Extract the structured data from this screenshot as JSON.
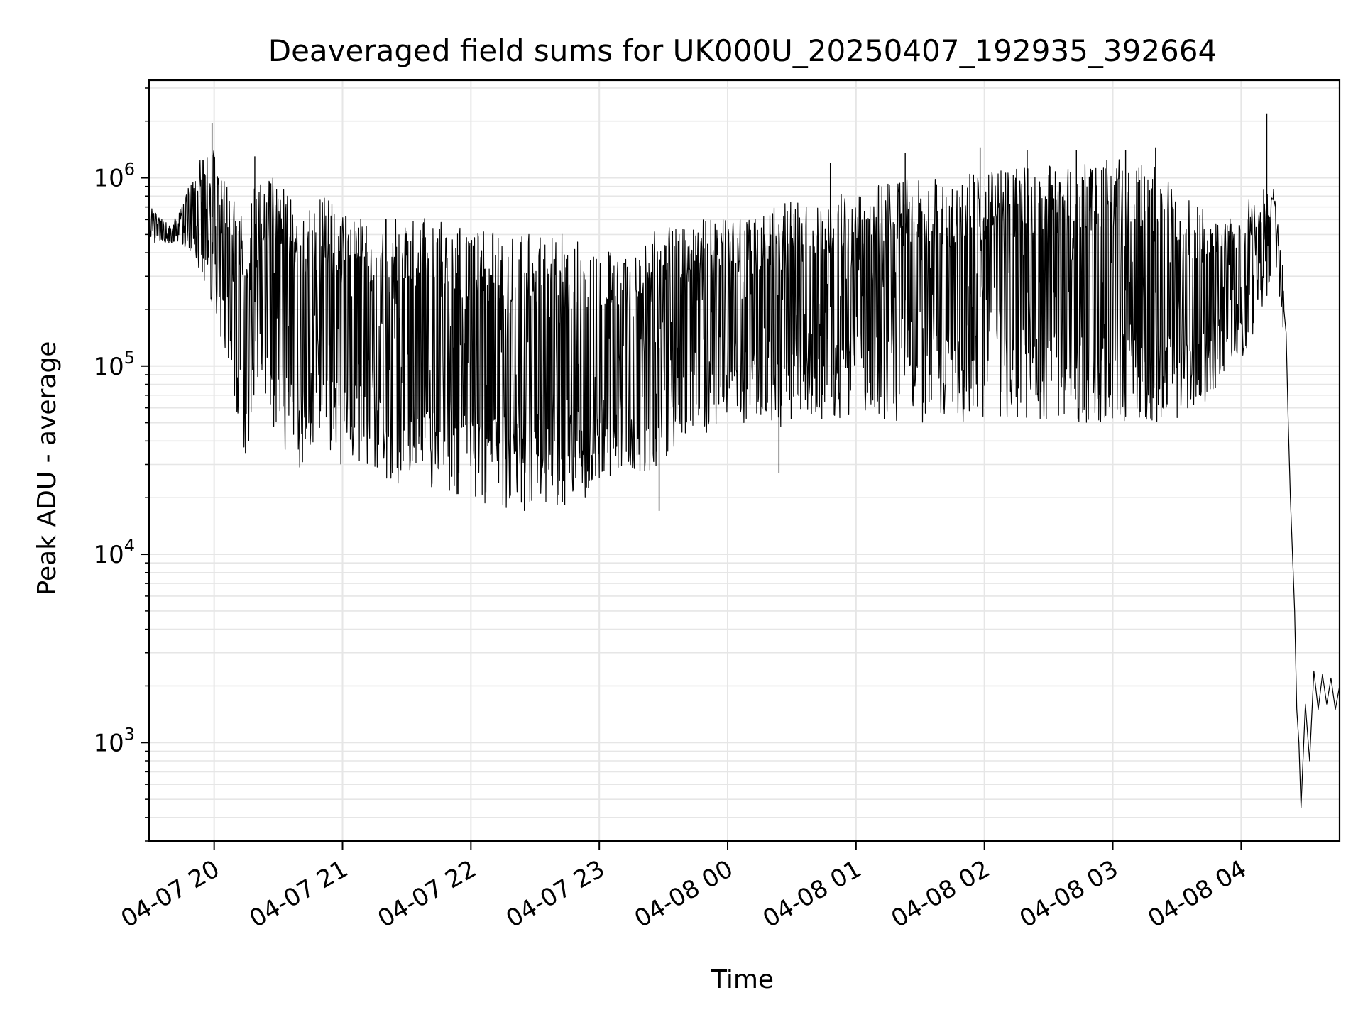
{
  "chart_data": {
    "type": "line",
    "title": "Deaveraged field sums for UK000U_20250407_192935_392664",
    "xlabel": "Time",
    "ylabel": "Peak ADU - average",
    "x_scale": "time",
    "y_scale": "log",
    "xlim": [
      "2025-04-07 19:29:35",
      "2025-04-08 04:46:00"
    ],
    "ylim": [
      300,
      3300000
    ],
    "grid": true,
    "legend": "none",
    "line_color": "#000000",
    "grid_color": "#e6e6e6",
    "x_ticks": [
      {
        "t": "2025-04-07 20:00",
        "label": "04-07 20"
      },
      {
        "t": "2025-04-07 21:00",
        "label": "04-07 21"
      },
      {
        "t": "2025-04-07 22:00",
        "label": "04-07 22"
      },
      {
        "t": "2025-04-07 23:00",
        "label": "04-07 23"
      },
      {
        "t": "2025-04-08 00:00",
        "label": "04-08 00"
      },
      {
        "t": "2025-04-08 01:00",
        "label": "04-08 01"
      },
      {
        "t": "2025-04-08 02:00",
        "label": "04-08 02"
      },
      {
        "t": "2025-04-08 03:00",
        "label": "04-08 03"
      },
      {
        "t": "2025-04-08 04:00",
        "label": "04-08 04"
      }
    ],
    "y_ticks": [
      {
        "value": 1000,
        "base": "10",
        "exp": "3"
      },
      {
        "value": 10000,
        "base": "10",
        "exp": "4"
      },
      {
        "value": 100000,
        "base": "10",
        "exp": "5"
      },
      {
        "value": 1000000,
        "base": "10",
        "exp": "6"
      }
    ],
    "envelope": [
      {
        "t": "2025-04-07 19:30",
        "low": 450000,
        "high": 700000
      },
      {
        "t": "2025-04-07 19:40",
        "low": 450000,
        "high": 550000
      },
      {
        "t": "2025-04-07 19:50",
        "low": 400000,
        "high": 1000000
      },
      {
        "t": "2025-04-07 20:00",
        "low": 200000,
        "high": 1900000
      },
      {
        "t": "2025-04-07 20:10",
        "low": 55000,
        "high": 700000
      },
      {
        "t": "2025-04-07 20:15",
        "low": 31000,
        "high": 600000
      },
      {
        "t": "2025-04-07 20:20",
        "low": 80000,
        "high": 1000000
      },
      {
        "t": "2025-04-07 20:30",
        "low": 40000,
        "high": 1000000
      },
      {
        "t": "2025-04-07 20:40",
        "low": 28000,
        "high": 700000
      },
      {
        "t": "2025-04-07 20:50",
        "low": 38000,
        "high": 900000
      },
      {
        "t": "2025-04-07 21:00",
        "low": 27000,
        "high": 650000
      },
      {
        "t": "2025-04-07 21:15",
        "low": 25000,
        "high": 600000
      },
      {
        "t": "2025-04-07 21:30",
        "low": 22000,
        "high": 620000
      },
      {
        "t": "2025-04-07 21:45",
        "low": 22000,
        "high": 600000
      },
      {
        "t": "2025-04-07 22:00",
        "low": 20000,
        "high": 550000
      },
      {
        "t": "2025-04-07 22:15",
        "low": 17000,
        "high": 500000
      },
      {
        "t": "2025-04-07 22:30",
        "low": 19000,
        "high": 550000
      },
      {
        "t": "2025-04-07 22:45",
        "low": 18000,
        "high": 500000
      },
      {
        "t": "2025-04-07 23:00",
        "low": 22000,
        "high": 450000
      },
      {
        "t": "2025-04-07 23:15",
        "low": 24000,
        "high": 450000
      },
      {
        "t": "2025-04-07 23:30",
        "low": 30000,
        "high": 550000
      },
      {
        "t": "2025-04-07 23:45",
        "low": 40000,
        "high": 600000
      },
      {
        "t": "2025-04-08 00:00",
        "low": 50000,
        "high": 600000
      },
      {
        "t": "2025-04-08 00:20",
        "low": 45000,
        "high": 700000
      },
      {
        "t": "2025-04-08 00:40",
        "low": 50000,
        "high": 800000
      },
      {
        "t": "2025-04-08 01:00",
        "low": 55000,
        "high": 850000
      },
      {
        "t": "2025-04-08 01:20",
        "low": 50000,
        "high": 1000000
      },
      {
        "t": "2025-04-08 01:40",
        "low": 50000,
        "high": 1000000
      },
      {
        "t": "2025-04-08 02:00",
        "low": 50000,
        "high": 1100000
      },
      {
        "t": "2025-04-08 02:20",
        "low": 50000,
        "high": 1200000
      },
      {
        "t": "2025-04-08 02:40",
        "low": 50000,
        "high": 1200000
      },
      {
        "t": "2025-04-08 03:00",
        "low": 50000,
        "high": 1300000
      },
      {
        "t": "2025-04-08 03:20",
        "low": 50000,
        "high": 1200000
      },
      {
        "t": "2025-04-08 03:40",
        "low": 55000,
        "high": 700000
      },
      {
        "t": "2025-04-08 03:50",
        "low": 80000,
        "high": 600000
      },
      {
        "t": "2025-04-08 04:00",
        "low": 100000,
        "high": 700000
      },
      {
        "t": "2025-04-08 04:10",
        "low": 200000,
        "high": 900000
      },
      {
        "t": "2025-04-08 04:15",
        "low": 300000,
        "high": 900000
      },
      {
        "t": "2025-04-08 04:20",
        "low": 150000,
        "high": 300000
      }
    ],
    "spikes": [
      {
        "t": "2025-04-07 19:59",
        "value": 1950000
      },
      {
        "t": "2025-04-07 20:19",
        "value": 1300000
      },
      {
        "t": "2025-04-08 00:48",
        "value": 1200000
      },
      {
        "t": "2025-04-08 01:23",
        "value": 1350000
      },
      {
        "t": "2025-04-08 01:58",
        "value": 1450000
      },
      {
        "t": "2025-04-08 02:20",
        "value": 1400000
      },
      {
        "t": "2025-04-08 02:43",
        "value": 1400000
      },
      {
        "t": "2025-04-08 03:06",
        "value": 1400000
      },
      {
        "t": "2025-04-08 03:20",
        "value": 1450000
      },
      {
        "t": "2025-04-08 04:12",
        "value": 2200000
      },
      {
        "t": "2025-04-07 22:25",
        "value": 17000
      },
      {
        "t": "2025-04-07 23:28",
        "value": 17000
      },
      {
        "t": "2025-04-08 00:24",
        "value": 27000
      }
    ],
    "tail": [
      {
        "t": "2025-04-08 04:20",
        "value": 200000
      },
      {
        "t": "2025-04-08 04:21",
        "value": 150000
      },
      {
        "t": "2025-04-08 04:22",
        "value": 50000
      },
      {
        "t": "2025-04-08 04:23",
        "value": 20000
      },
      {
        "t": "2025-04-08 04:24",
        "value": 10000
      },
      {
        "t": "2025-04-08 04:25",
        "value": 5000
      },
      {
        "t": "2025-04-08 04:26",
        "value": 1500
      },
      {
        "t": "2025-04-08 04:27",
        "value": 1000
      },
      {
        "t": "2025-04-08 04:28",
        "value": 450
      },
      {
        "t": "2025-04-08 04:30",
        "value": 1600
      },
      {
        "t": "2025-04-08 04:32",
        "value": 800
      },
      {
        "t": "2025-04-08 04:34",
        "value": 2400
      },
      {
        "t": "2025-04-08 04:36",
        "value": 1500
      },
      {
        "t": "2025-04-08 04:38",
        "value": 2300
      },
      {
        "t": "2025-04-08 04:40",
        "value": 1600
      },
      {
        "t": "2025-04-08 04:42",
        "value": 2200
      },
      {
        "t": "2025-04-08 04:44",
        "value": 1500
      },
      {
        "t": "2025-04-08 04:46",
        "value": 2000
      }
    ]
  }
}
